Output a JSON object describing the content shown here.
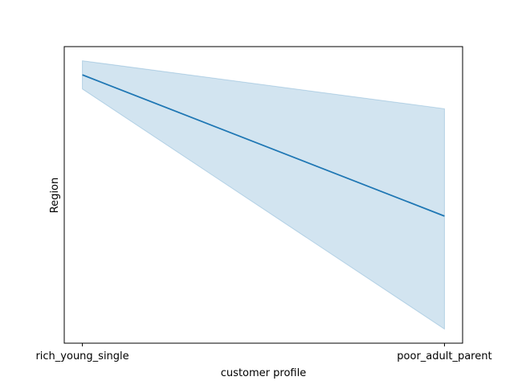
{
  "chart_data": {
    "type": "line",
    "title": "",
    "xlabel": "customer profile",
    "ylabel": "Region",
    "categories": [
      "rich_young_single",
      "poor_adult_parent"
    ],
    "series": [
      {
        "values": [
          0.9,
          0.4
        ],
        "ci_lower": [
          0.85,
          -0.0
        ],
        "ci_upper": [
          0.95,
          0.78
        ],
        "color": "#1f77b4",
        "band_color": "#1f77b4"
      }
    ],
    "ylim": [
      -0.05,
      1.0
    ],
    "y_ticks_shown": false,
    "grid": false,
    "legend": "none"
  }
}
